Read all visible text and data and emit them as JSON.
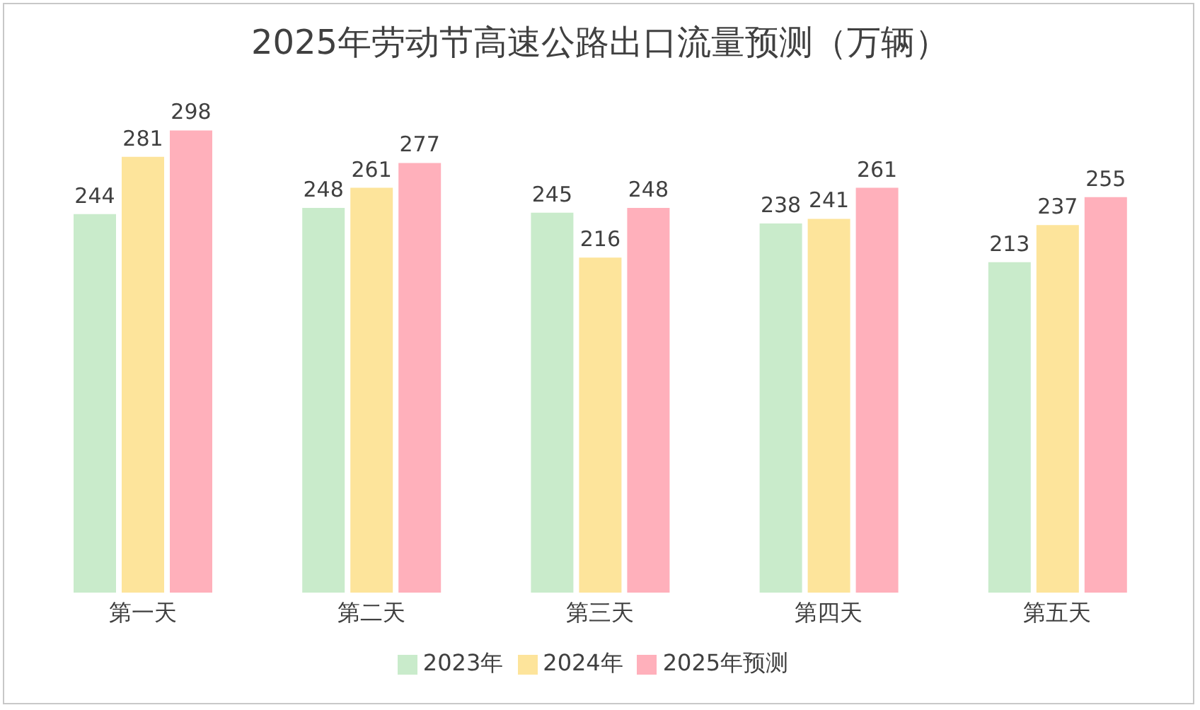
{
  "chart_data": {
    "type": "bar",
    "title": "2025年劳动节高速公路出口流量预测（万辆）",
    "categories": [
      "第一天",
      "第二天",
      "第三天",
      "第四天",
      "第五天"
    ],
    "series": [
      {
        "name": "2023年",
        "color": "#c9ebcb",
        "values": [
          244,
          248,
          245,
          238,
          213
        ]
      },
      {
        "name": "2024年",
        "color": "#fde49b",
        "values": [
          281,
          261,
          216,
          241,
          237
        ]
      },
      {
        "name": "2025年预测",
        "color": "#ffb0bb",
        "values": [
          298,
          277,
          248,
          261,
          255
        ]
      }
    ],
    "data_labels": true,
    "grid": false,
    "legend": "bottom"
  }
}
